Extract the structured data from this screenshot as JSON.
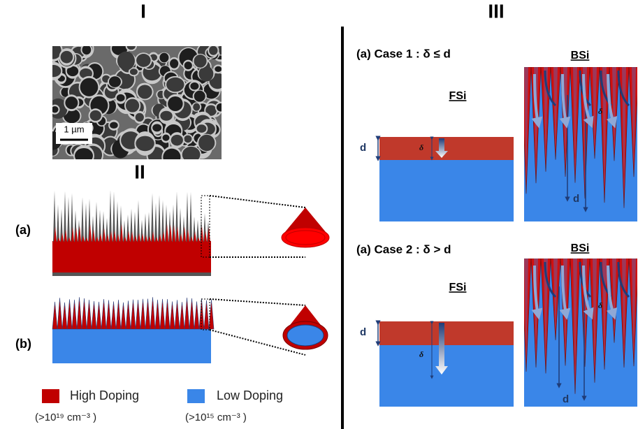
{
  "panel_i": {
    "label": "I",
    "scale_bar": "1 µm"
  },
  "panel_ii": {
    "label": "II",
    "rows": [
      {
        "label": "(a)"
      },
      {
        "label": "(b)"
      }
    ]
  },
  "legend": [
    {
      "name": "High Doping",
      "note": "(>10¹⁹ cm⁻³ )"
    },
    {
      "name": "Low Doping",
      "note": "(>10¹⁵ cm⁻³ )"
    }
  ],
  "panel_iii": {
    "label": "III",
    "cases": [
      {
        "title": "(a) Case 1 : δ ≤ d",
        "fsi": "FSi",
        "bsi": "BSi",
        "fsi_depth": "d",
        "fsi_delta": "δ",
        "bsi_delta": "δ",
        "bsi_depth": "d"
      },
      {
        "title": "(a) Case 2 : δ > d",
        "fsi": "FSi",
        "bsi": "BSi",
        "fsi_depth": "d",
        "fsi_delta": "δ",
        "bsi_delta": "δ",
        "bsi_depth": "d"
      }
    ]
  }
}
